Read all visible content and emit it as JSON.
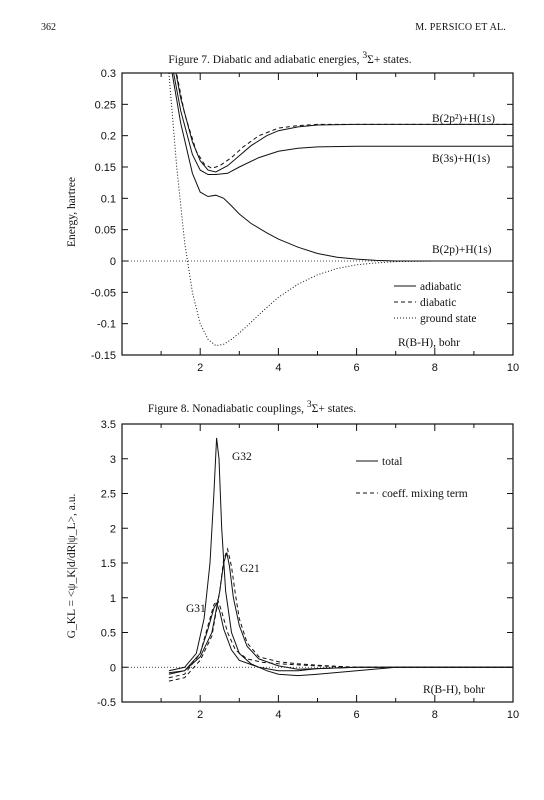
{
  "page": {
    "page_number": "362",
    "running_head": "M. PERSICO ET AL."
  },
  "figures": [
    {
      "id": "fig7",
      "caption_prefix": "Figure 7.",
      "caption_text": "Diabatic and adiabatic energies,",
      "caption_state_sup": "3",
      "caption_state": "Σ+",
      "caption_suffix": "states.",
      "ylabel": "Energy, hartree",
      "xlabel_inside": "R(B-H), bohr",
      "curve_labels": [
        "B(2p²)+H(1s)",
        "B(3s)+H(1s)",
        "B(2p)+H(1s)"
      ],
      "legend": [
        "adiabatic",
        "diabatic",
        "ground state"
      ]
    },
    {
      "id": "fig8",
      "caption_prefix": "Figure 8.",
      "caption_text": "Nonadiabatic couplings,",
      "caption_state_sup": "3",
      "caption_state": "Σ+",
      "caption_suffix": "states.",
      "ylabel": "G_KL = <ψ_K|d/dR|ψ_L>, a.u.",
      "xlabel_inside": "R(B-H), bohr",
      "curve_labels": [
        "G32",
        "G21",
        "G31"
      ],
      "legend": [
        "total",
        "coeff. mixing term"
      ]
    }
  ],
  "chart_data": [
    {
      "type": "line",
      "title": "Diabatic and adiabatic energies, 3Σ+ states",
      "xlabel": "R(B-H), bohr",
      "ylabel": "Energy, hartree",
      "xlim": [
        0,
        10
      ],
      "ylim": [
        -0.15,
        0.3
      ],
      "xticks": [
        "2",
        "4",
        "6",
        "8",
        "10"
      ],
      "yticks": [
        "0.3",
        "0.25",
        "0.2",
        "0.15",
        "0.1",
        "0.05",
        "0",
        "-0.05",
        "-0.1",
        "-0.15"
      ],
      "legend_position": "bottom-right",
      "grid": false,
      "series": [
        {
          "name": "adiabatic",
          "style": "solid",
          "x": [
            1.2,
            1.5,
            1.8,
            2.0,
            2.2,
            2.4,
            2.7,
            3.0,
            3.3,
            3.7,
            4.0,
            4.5,
            5.0,
            6.0,
            7.0,
            8.0,
            10.0
          ],
          "y": [
            0.36,
            0.26,
            0.19,
            0.16,
            0.145,
            0.142,
            0.152,
            0.168,
            0.184,
            0.2,
            0.208,
            0.214,
            0.217,
            0.218,
            0.218,
            0.218,
            0.218
          ]
        },
        {
          "name": "adiabatic",
          "style": "solid",
          "x": [
            1.2,
            1.5,
            1.8,
            2.0,
            2.2,
            2.4,
            2.7,
            3.0,
            3.5,
            4.0,
            4.5,
            5.0,
            6.0,
            7.0,
            8.0,
            10.0
          ],
          "y": [
            0.34,
            0.24,
            0.17,
            0.145,
            0.138,
            0.138,
            0.14,
            0.15,
            0.165,
            0.175,
            0.18,
            0.182,
            0.183,
            0.183,
            0.183,
            0.183
          ]
        },
        {
          "name": "adiabatic",
          "style": "solid",
          "x": [
            1.2,
            1.5,
            1.8,
            2.0,
            2.2,
            2.4,
            2.6,
            2.8,
            3.0,
            3.3,
            3.7,
            4.0,
            4.5,
            5.0,
            5.5,
            6.0,
            6.5,
            7.0,
            8.0,
            10.0
          ],
          "y": [
            0.33,
            0.22,
            0.14,
            0.11,
            0.103,
            0.105,
            0.1,
            0.088,
            0.075,
            0.06,
            0.045,
            0.035,
            0.022,
            0.012,
            0.006,
            0.003,
            0.001,
            0.0,
            0.0,
            0.0
          ]
        },
        {
          "name": "diabatic",
          "style": "dashed",
          "x": [
            1.3,
            1.6,
            1.9,
            2.1,
            2.3,
            2.5,
            2.8,
            3.1,
            3.5,
            4.0,
            4.5,
            5.0,
            6.0,
            8.0,
            10.0
          ],
          "y": [
            0.33,
            0.235,
            0.175,
            0.155,
            0.148,
            0.152,
            0.165,
            0.182,
            0.2,
            0.212,
            0.216,
            0.218,
            0.218,
            0.218,
            0.218
          ]
        },
        {
          "name": "ground state",
          "style": "dotted",
          "x": [
            1.2,
            1.4,
            1.6,
            1.8,
            2.0,
            2.2,
            2.4,
            2.6,
            2.8,
            3.0,
            3.3,
            3.6,
            4.0,
            4.5,
            5.0,
            5.5,
            6.0,
            6.5,
            7.0,
            8.0,
            10.0
          ],
          "y": [
            0.3,
            0.15,
            0.03,
            -0.05,
            -0.1,
            -0.125,
            -0.135,
            -0.133,
            -0.125,
            -0.115,
            -0.098,
            -0.08,
            -0.058,
            -0.037,
            -0.022,
            -0.012,
            -0.006,
            -0.003,
            -0.001,
            0.0,
            0.0
          ]
        }
      ]
    },
    {
      "type": "line",
      "title": "Nonadiabatic couplings, 3Σ+ states",
      "xlabel": "R(B-H), bohr",
      "ylabel": "G_KL = <ψ_K|d/dR|ψ_L>, a.u.",
      "xlim": [
        0,
        10
      ],
      "ylim": [
        -0.5,
        3.5
      ],
      "xticks": [
        "2",
        "4",
        "6",
        "8",
        "10"
      ],
      "yticks": [
        "3.5",
        "3",
        "2.5",
        "2",
        "1.5",
        "1",
        "0.5",
        "0",
        "-0.5"
      ],
      "legend_position": "top-right",
      "grid": false,
      "series": [
        {
          "name": "total",
          "style": "solid",
          "x": [
            1.2,
            1.6,
            1.9,
            2.1,
            2.25,
            2.35,
            2.42,
            2.48,
            2.55,
            2.65,
            2.8,
            3.0,
            3.3,
            3.7,
            4.0,
            4.5,
            5.0,
            6.0,
            7.0,
            8.0,
            10.0
          ],
          "y": [
            -0.05,
            0.0,
            0.2,
            0.7,
            1.5,
            2.5,
            3.3,
            3.0,
            2.0,
            1.1,
            0.5,
            0.2,
            0.05,
            -0.05,
            -0.1,
            -0.12,
            -0.1,
            -0.05,
            0.0,
            0.0,
            0.0
          ]
        },
        {
          "name": "total",
          "style": "solid",
          "x": [
            1.2,
            1.6,
            2.0,
            2.3,
            2.5,
            2.6,
            2.68,
            2.75,
            2.85,
            3.0,
            3.2,
            3.5,
            4.0,
            4.5,
            5.0,
            6.0,
            7.0,
            10.0
          ],
          "y": [
            -0.1,
            -0.05,
            0.15,
            0.5,
            1.1,
            1.5,
            1.65,
            1.45,
            1.0,
            0.6,
            0.3,
            0.12,
            0.02,
            -0.03,
            -0.02,
            0.0,
            0.0,
            0.0
          ]
        },
        {
          "name": "total",
          "style": "solid",
          "x": [
            1.2,
            1.6,
            2.0,
            2.2,
            2.35,
            2.42,
            2.5,
            2.6,
            2.8,
            3.0,
            3.5,
            4.0,
            4.5,
            5.0,
            6.0,
            7.0,
            10.0
          ],
          "y": [
            -0.08,
            -0.05,
            0.2,
            0.55,
            0.85,
            0.92,
            0.8,
            0.55,
            0.25,
            0.1,
            0.0,
            -0.05,
            -0.05,
            -0.02,
            0.0,
            0.0,
            0.0
          ]
        },
        {
          "name": "coeff. mixing term",
          "style": "dashed",
          "x": [
            1.2,
            1.6,
            2.0,
            2.3,
            2.5,
            2.6,
            2.7,
            2.8,
            2.9,
            3.0,
            3.2,
            3.5,
            4.0,
            4.5,
            5.0,
            6.0,
            7.0,
            10.0
          ],
          "y": [
            -0.2,
            -0.15,
            0.1,
            0.45,
            1.1,
            1.55,
            1.7,
            1.45,
            1.05,
            0.7,
            0.35,
            0.15,
            0.08,
            0.05,
            0.03,
            0.0,
            0.0,
            0.0
          ]
        },
        {
          "name": "coeff. mixing term",
          "style": "dashed",
          "x": [
            1.2,
            1.6,
            2.0,
            2.2,
            2.35,
            2.45,
            2.55,
            2.7,
            2.9,
            3.2,
            3.6,
            4.0,
            5.0,
            6.0,
            7.0,
            10.0
          ],
          "y": [
            -0.15,
            -0.1,
            0.2,
            0.6,
            0.9,
            0.97,
            0.8,
            0.5,
            0.25,
            0.12,
            0.07,
            0.05,
            0.02,
            0.0,
            0.0,
            0.0
          ]
        }
      ]
    }
  ]
}
